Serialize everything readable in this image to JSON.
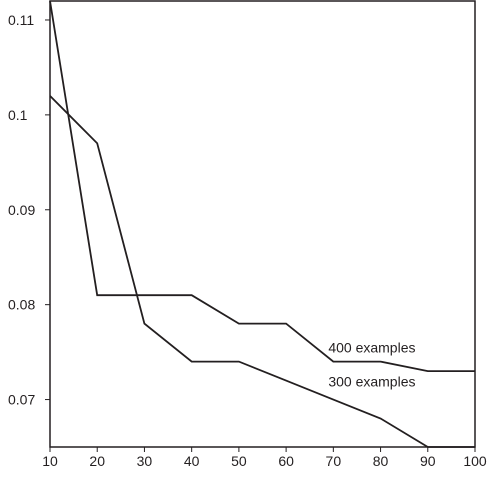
{
  "chart_data": {
    "type": "line",
    "title": "",
    "xlabel": "",
    "ylabel": "",
    "xlim": [
      10,
      100
    ],
    "ylim": [
      0.065,
      0.112
    ],
    "grid": false,
    "legend": "none (inline labels)",
    "x_ticks": [
      "10",
      "20",
      "30",
      "40",
      "50",
      "60",
      "70",
      "80",
      "90",
      "100"
    ],
    "y_ticks": [
      "0.07",
      "0.08",
      "0.09",
      "0.1",
      "0.11"
    ],
    "series": [
      {
        "name": "400 examples",
        "color": "#231f20",
        "x": [
          10,
          20,
          30,
          40,
          50,
          60,
          70,
          80,
          90,
          100
        ],
        "values": [
          0.102,
          0.097,
          0.078,
          0.074,
          0.074,
          0.072,
          0.07,
          0.068,
          0.065,
          0.065
        ]
      },
      {
        "name": "300 examples",
        "color": "#231f20",
        "x": [
          10,
          20,
          30,
          40,
          50,
          60,
          70,
          80,
          90,
          100
        ],
        "values": [
          0.112,
          0.081,
          0.081,
          0.081,
          0.078,
          0.078,
          0.074,
          0.074,
          0.073,
          0.073
        ]
      }
    ],
    "annotations": [
      {
        "text": "400 examples",
        "x": 70,
        "y": 0.0755
      },
      {
        "text": "300 examples",
        "x": 70,
        "y": 0.0719
      }
    ]
  }
}
